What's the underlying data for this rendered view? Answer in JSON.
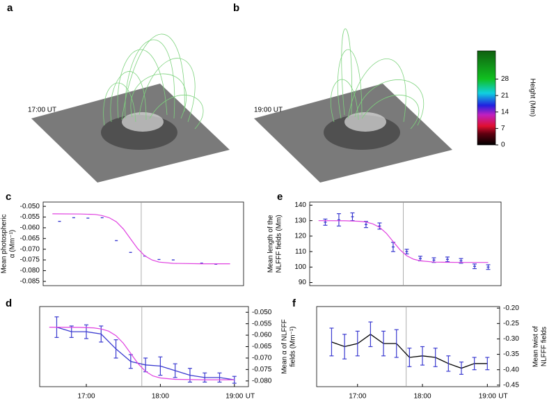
{
  "panels": [
    {
      "letter": "a",
      "time": "17:00 UT"
    },
    {
      "letter": "b",
      "time": "19:00 UT"
    }
  ],
  "colorbar": {
    "label": "Height (Mm)",
    "lim": [
      0,
      40
    ],
    "ticks": [
      0,
      7,
      14,
      21,
      28
    ]
  },
  "chart_data": [
    {
      "type": "line",
      "label": "c",
      "ylabel": [
        "Mean photospheric",
        "α (Mm⁻¹)"
      ],
      "yaxis": "left",
      "x": [
        16.6,
        16.8,
        17.0,
        17.2,
        17.4,
        17.6,
        17.8,
        18.0,
        18.2,
        18.4,
        18.6,
        18.8,
        19.0
      ],
      "xlim": [
        16.37,
        19.19
      ],
      "ylim": [
        -0.087,
        -0.048
      ],
      "vline": 17.75,
      "yticks": [
        {
          "value": -0.05,
          "label": "-0.050"
        },
        {
          "value": -0.055,
          "label": "-0.055"
        },
        {
          "value": -0.06,
          "label": "-0.060"
        },
        {
          "value": -0.065,
          "label": "-0.065"
        },
        {
          "value": -0.07,
          "label": "-0.070"
        },
        {
          "value": -0.075,
          "label": "-0.075"
        },
        {
          "value": -0.08,
          "label": "-0.080"
        },
        {
          "value": -0.085,
          "label": "-0.085"
        }
      ],
      "series": [
        {
          "color": "#3a3ad0",
          "markers": true,
          "values": [
            -0.057,
            -0.0553,
            -0.0555,
            -0.0553,
            -0.066,
            -0.0715,
            -0.0732,
            -0.0748,
            -0.075,
            null,
            -0.0765,
            -0.077,
            null
          ]
        },
        {
          "color": "#e040e0",
          "x": [
            16.5,
            16.9,
            17.1,
            17.2,
            17.3,
            17.4,
            17.5,
            17.6,
            17.7,
            17.8,
            17.9,
            18.0,
            18.2,
            18.6,
            19.0
          ],
          "values": [
            -0.0535,
            -0.0536,
            -0.0538,
            -0.0543,
            -0.0553,
            -0.0572,
            -0.0606,
            -0.0652,
            -0.0697,
            -0.0731,
            -0.075,
            -0.076,
            -0.0766,
            -0.0768,
            -0.0768
          ]
        }
      ]
    },
    {
      "type": "line",
      "label": "e",
      "ylabel": [
        "Mean length of the",
        "NLFFF fields (Mm)"
      ],
      "yaxis": "left",
      "x": [
        16.6,
        16.8,
        17.0,
        17.2,
        17.4,
        17.6,
        17.8,
        18.0,
        18.2,
        18.4,
        18.6,
        18.8,
        19.0
      ],
      "xlim": [
        16.37,
        19.19
      ],
      "ylim": [
        88,
        142
      ],
      "vline": 17.75,
      "yticks": [
        90,
        100,
        110,
        120,
        130,
        140
      ],
      "series": [
        {
          "color": "#3a3ad0",
          "markers": true,
          "values": [
            129,
            130.5,
            132.5,
            127.5,
            126.5,
            113,
            110,
            105.5,
            104.5,
            105,
            104,
            100.5,
            100
          ],
          "errors": [
            2,
            4,
            2.5,
            2,
            2,
            3,
            1.5,
            1.5,
            1.5,
            1.5,
            1.5,
            1.5,
            1.5
          ]
        },
        {
          "color": "#e040e0",
          "x": [
            16.5,
            16.9,
            17.1,
            17.2,
            17.3,
            17.4,
            17.5,
            17.6,
            17.7,
            17.8,
            17.9,
            18.0,
            18.2,
            18.6,
            19.0
          ],
          "values": [
            130,
            129.9,
            129.6,
            129.1,
            127.9,
            125.7,
            121.8,
            116.5,
            111.2,
            107.3,
            105.1,
            104,
            103.2,
            103,
            103
          ]
        }
      ]
    },
    {
      "type": "line",
      "label": "d",
      "ylabel": [
        "Mean α of NLFFF",
        "fields (Mm⁻¹)"
      ],
      "yaxis": "right",
      "x": [
        16.6,
        16.8,
        17.0,
        17.2,
        17.4,
        17.6,
        17.8,
        18.0,
        18.2,
        18.4,
        18.6,
        18.8,
        19.0
      ],
      "xlim": [
        16.37,
        19.19
      ],
      "ylim": [
        -0.0825,
        -0.0475
      ],
      "vline": 17.75,
      "xlabel": "UT",
      "xticks": [
        {
          "value": 17,
          "label": "17:00"
        },
        {
          "value": 18,
          "label": "18:00"
        },
        {
          "value": 19,
          "label": "19:00"
        }
      ],
      "yticks": [
        {
          "value": -0.05,
          "label": "-0.050"
        },
        {
          "value": -0.055,
          "label": "-0.055"
        },
        {
          "value": -0.06,
          "label": "-0.060"
        },
        {
          "value": -0.065,
          "label": "-0.065"
        },
        {
          "value": -0.07,
          "label": "-0.070"
        },
        {
          "value": -0.075,
          "label": "-0.075"
        },
        {
          "value": -0.08,
          "label": "-0.080"
        }
      ],
      "series": [
        {
          "color": "#3a3ad0",
          "values": [
            -0.0565,
            -0.0585,
            -0.0585,
            -0.0595,
            -0.066,
            -0.0715,
            -0.073,
            -0.0735,
            -0.0755,
            -0.0775,
            -0.0785,
            -0.0785,
            -0.0795
          ],
          "errors": [
            0.0045,
            0.0025,
            0.003,
            0.0035,
            0.004,
            0.003,
            0.003,
            0.004,
            0.003,
            0.003,
            0.002,
            0.002,
            0.0015
          ]
        },
        {
          "color": "#e040e0",
          "x": [
            16.5,
            16.9,
            17.1,
            17.2,
            17.3,
            17.4,
            17.5,
            17.6,
            17.7,
            17.8,
            17.9,
            18.0,
            18.2,
            18.6,
            19.0
          ],
          "values": [
            -0.0565,
            -0.0566,
            -0.0568,
            -0.0573,
            -0.0582,
            -0.0602,
            -0.0635,
            -0.068,
            -0.0725,
            -0.0758,
            -0.0778,
            -0.0787,
            -0.0793,
            -0.0795,
            -0.0795
          ]
        }
      ]
    },
    {
      "type": "line",
      "label": "f",
      "ylabel": [
        "Mean twist of",
        "NLFFF fields"
      ],
      "yaxis": "right",
      "x": [
        16.6,
        16.8,
        17.0,
        17.2,
        17.4,
        17.6,
        17.8,
        18.0,
        18.2,
        18.4,
        18.6,
        18.8,
        19.0
      ],
      "xlim": [
        16.37,
        19.19
      ],
      "ylim": [
        -0.455,
        -0.195
      ],
      "vline": 17.75,
      "xlabel": "UT",
      "xticks": [
        {
          "value": 17,
          "label": "17:00"
        },
        {
          "value": 18,
          "label": "18:00"
        },
        {
          "value": 19,
          "label": "19:00"
        }
      ],
      "yticks": [
        {
          "value": -0.2,
          "label": "-0.20"
        },
        -0.25,
        {
          "value": -0.3,
          "label": "-0.30"
        },
        -0.35,
        {
          "value": -0.4,
          "label": "-0.40"
        },
        -0.45
      ],
      "series": [
        {
          "color": "#000000",
          "error_color": "#3a3ad0",
          "connect": true,
          "values": [
            -0.31,
            -0.325,
            -0.315,
            -0.285,
            -0.315,
            -0.315,
            -0.36,
            -0.355,
            -0.36,
            -0.38,
            -0.395,
            -0.38,
            -0.38
          ],
          "errors": [
            0.045,
            0.04,
            0.04,
            0.04,
            0.04,
            0.045,
            0.03,
            0.03,
            0.03,
            0.025,
            0.02,
            0.02,
            0.02
          ]
        }
      ]
    }
  ]
}
